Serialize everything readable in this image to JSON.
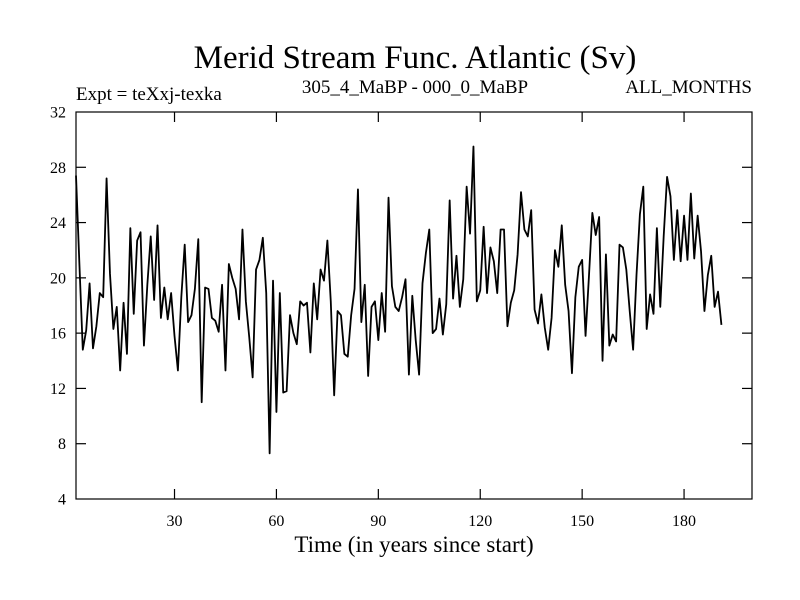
{
  "chart_data": {
    "type": "line",
    "title": "Merid Stream Func. Atlantic (Sv)",
    "subtitle_left": "Expt = teXxj-texka",
    "subtitle_center": "305_4_MaBP - 000_0_MaBP",
    "subtitle_right": "ALL_MONTHS",
    "xlabel": "Time (in years since start)",
    "ylabel": "",
    "xlim": [
      1,
      200
    ],
    "ylim": [
      4,
      32
    ],
    "x_ticks": [
      30,
      60,
      90,
      120,
      150,
      180
    ],
    "y_ticks": [
      4,
      8,
      12,
      16,
      20,
      24,
      28,
      32
    ],
    "x_start": 1,
    "x_step": 1,
    "series": [
      {
        "name": "Merid Stream Func. Atlantic",
        "values": [
          27.4,
          21.0,
          14.8,
          16.2,
          19.6,
          14.9,
          16.5,
          18.9,
          18.6,
          27.2,
          20.3,
          16.3,
          17.9,
          13.3,
          18.2,
          14.5,
          23.6,
          17.4,
          22.7,
          23.3,
          15.1,
          19.5,
          23.0,
          18.4,
          23.8,
          17.1,
          19.3,
          17.0,
          18.9,
          15.8,
          13.3,
          18.6,
          22.4,
          16.8,
          17.3,
          19.2,
          22.8,
          11.0,
          19.3,
          19.2,
          17.1,
          16.9,
          16.1,
          19.5,
          13.3,
          21.0,
          20.0,
          19.2,
          17.0,
          23.5,
          18.3,
          15.7,
          12.8,
          20.6,
          21.3,
          22.9,
          18.9,
          7.3,
          19.8,
          10.3,
          18.9,
          11.7,
          11.8,
          17.3,
          16.0,
          15.2,
          18.3,
          18.0,
          18.2,
          14.6,
          19.6,
          17.0,
          20.6,
          19.8,
          22.7,
          18.3,
          11.5,
          17.6,
          17.3,
          14.5,
          14.3,
          17.3,
          19.2,
          26.4,
          16.8,
          19.5,
          12.9,
          17.9,
          18.3,
          15.5,
          18.9,
          16.1,
          25.8,
          19.4,
          17.9,
          17.6,
          18.6,
          19.9,
          13.0,
          18.7,
          15.5,
          13.0,
          19.6,
          21.8,
          23.5,
          16.0,
          16.3,
          18.5,
          15.9,
          18.1,
          25.6,
          18.5,
          21.6,
          17.9,
          19.9,
          26.6,
          23.2,
          29.5,
          18.3,
          19.1,
          23.7,
          18.9,
          22.2,
          21.2,
          18.9,
          23.5,
          23.5,
          16.5,
          18.2,
          19.1,
          21.7,
          26.2,
          23.5,
          23.0,
          24.9,
          17.7,
          16.7,
          18.8,
          16.4,
          14.8,
          17.1,
          22.0,
          20.8,
          23.8,
          19.5,
          17.6,
          13.1,
          18.6,
          20.8,
          21.3,
          15.8,
          20.1,
          24.7,
          23.1,
          24.4,
          14.0,
          21.7,
          15.1,
          15.9,
          15.4,
          22.4,
          22.2,
          20.6,
          17.6,
          14.8,
          20.2,
          24.6,
          26.6,
          16.3,
          18.8,
          17.4,
          23.6,
          17.9,
          23.0,
          27.3,
          25.9,
          21.3,
          24.9,
          21.2,
          24.5,
          21.3,
          26.1,
          21.4,
          24.5,
          21.9,
          17.6,
          20.2,
          21.6,
          17.9,
          19.0,
          16.6
        ]
      }
    ],
    "line_color": "#000000"
  }
}
